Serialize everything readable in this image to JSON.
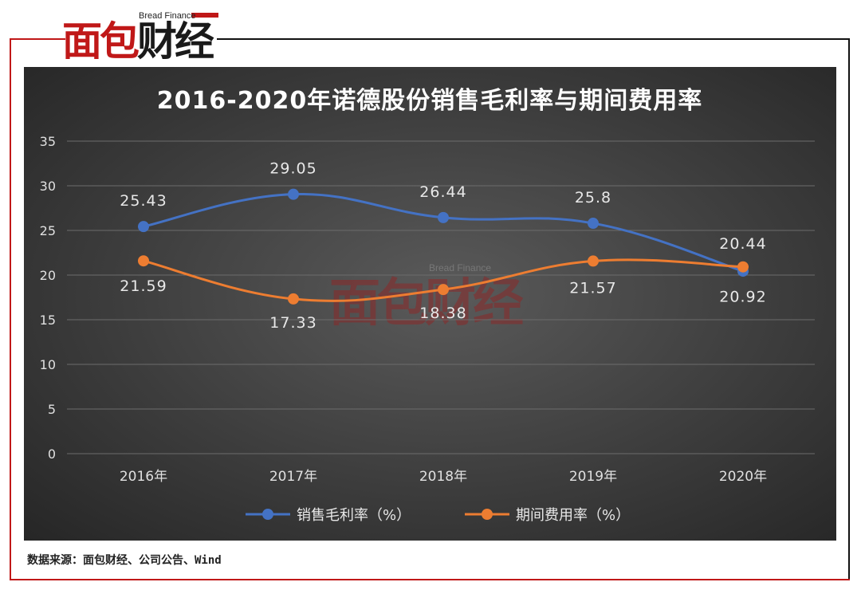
{
  "brand": {
    "logo_cn_red": "面包",
    "logo_cn_dark": "财经",
    "logo_en": "Bread Finance",
    "red": "#c01818"
  },
  "source": "数据来源：面包财经、公司公告、Wind",
  "watermark": {
    "en": "Bread Finance",
    "cn": "面包财经"
  },
  "chart_data": {
    "type": "line",
    "title": "2016-2020年诺德股份销售毛利率与期间费用率",
    "categories": [
      "2016年",
      "2017年",
      "2018年",
      "2019年",
      "2020年"
    ],
    "ylim": [
      0,
      35
    ],
    "yticks": [
      "0",
      "5",
      "10",
      "15",
      "20",
      "25",
      "30",
      "35"
    ],
    "grid": true,
    "legend_position": "bottom",
    "series": [
      {
        "name": "销售毛利率（%）",
        "color": "#4472c4",
        "values": [
          25.43,
          29.05,
          26.44,
          25.8,
          20.44
        ],
        "labels": [
          "25.43",
          "29.05",
          "26.44",
          "25.8",
          "20.44"
        ]
      },
      {
        "name": "期间费用率（%）",
        "color": "#ed7d31",
        "values": [
          21.59,
          17.33,
          18.38,
          21.57,
          20.92
        ],
        "labels": [
          "21.59",
          "17.33",
          "18.38",
          "21.57",
          "20.92"
        ]
      }
    ]
  }
}
